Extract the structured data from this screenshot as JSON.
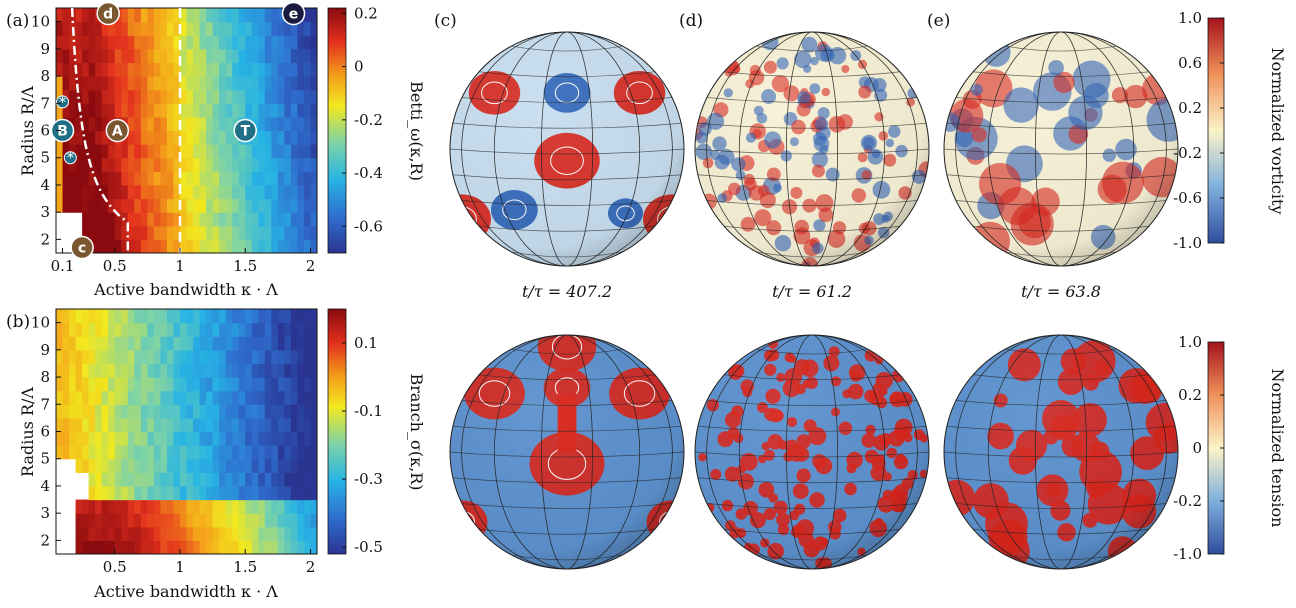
{
  "colors": {
    "colormap": [
      "#2a3592",
      "#2f6fd0",
      "#27b4e4",
      "#7fd3a6",
      "#f2e81f",
      "#f4a21a",
      "#e3311e",
      "#8a0a0f"
    ],
    "annotation_fill": "#7a5631",
    "teal_fill": "#1f6f86",
    "sphere_low": "#2e64b8",
    "sphere_high": "#d8261c"
  },
  "chart_data": [
    {
      "type": "heatmap",
      "panel_label": "(a)",
      "xlabel": "Active bandwidth κ · Λ",
      "ylabel": "Radius R/Λ",
      "colorbar_label": "Betti_ω(κ,R)",
      "xticks": [
        "0.1",
        "0.5",
        "1",
        "1.5",
        "2"
      ],
      "xtick_values": [
        0.1,
        0.5,
        1,
        1.5,
        2
      ],
      "yticks": [
        "2",
        "3",
        "4",
        "5",
        "6",
        "7",
        "8",
        "9",
        "10"
      ],
      "colorbar_ticks": [
        "0.2",
        "0",
        "-0.2",
        "-0.4",
        "-0.6"
      ],
      "colorbar_tick_values": [
        0.2,
        0,
        -0.2,
        -0.4,
        -0.6
      ],
      "xlim": [
        0.05,
        2.05
      ],
      "ylim": [
        1.5,
        10.5
      ],
      "clim": [
        -0.7,
        0.22
      ],
      "vline_x": 1.0,
      "markers": [
        {
          "label": "d",
          "x": 0.45,
          "y": 10.3
        },
        {
          "label": "e",
          "x": 1.87,
          "y": 10.3
        },
        {
          "label": "A",
          "x": 0.52,
          "y": 6.0
        },
        {
          "label": "B",
          "x": 0.1,
          "y": 6.0
        },
        {
          "label": "T",
          "x": 1.5,
          "y": 6.0
        },
        {
          "label": "c",
          "x": 0.25,
          "y": 1.7
        },
        {
          "label": "*",
          "x": 0.1,
          "y": 7.05
        },
        {
          "label": "*",
          "x": 0.16,
          "y": 5.0
        }
      ]
    },
    {
      "type": "heatmap",
      "panel_label": "(b)",
      "xlabel": "Active bandwidth κ · Λ",
      "ylabel": "Radius R/Λ",
      "colorbar_label": "Branch_σ(κ,R)",
      "xticks": [
        "0.5",
        "1",
        "1.5",
        "2"
      ],
      "xtick_values": [
        0.5,
        1,
        1.5,
        2
      ],
      "yticks": [
        "2",
        "3",
        "4",
        "5",
        "6",
        "7",
        "8",
        "9",
        "10"
      ],
      "colorbar_ticks": [
        "0.1",
        "-0.1",
        "-0.3",
        "-0.5"
      ],
      "colorbar_tick_values": [
        0.1,
        -0.1,
        -0.3,
        -0.5
      ],
      "xlim": [
        0.05,
        2.05
      ],
      "ylim": [
        1.5,
        10.5
      ],
      "clim": [
        -0.52,
        0.2
      ]
    }
  ],
  "spheres": {
    "panels": [
      "(c)",
      "(d)",
      "(e)"
    ],
    "times": [
      "t/τ = 407.2",
      "t/τ = 61.2",
      "t/τ = 63.8"
    ],
    "vorticity_colorbar": {
      "label": "Normalized vorticity",
      "ticks": [
        "1.0",
        "0.6",
        "0.2",
        "-0.2",
        "-0.6",
        "-1.0"
      ]
    },
    "tension_colorbar": {
      "label": "Normalized tension",
      "ticks": [
        "1.0",
        "0.2",
        "0",
        "-0.2",
        "-1.0"
      ]
    }
  }
}
